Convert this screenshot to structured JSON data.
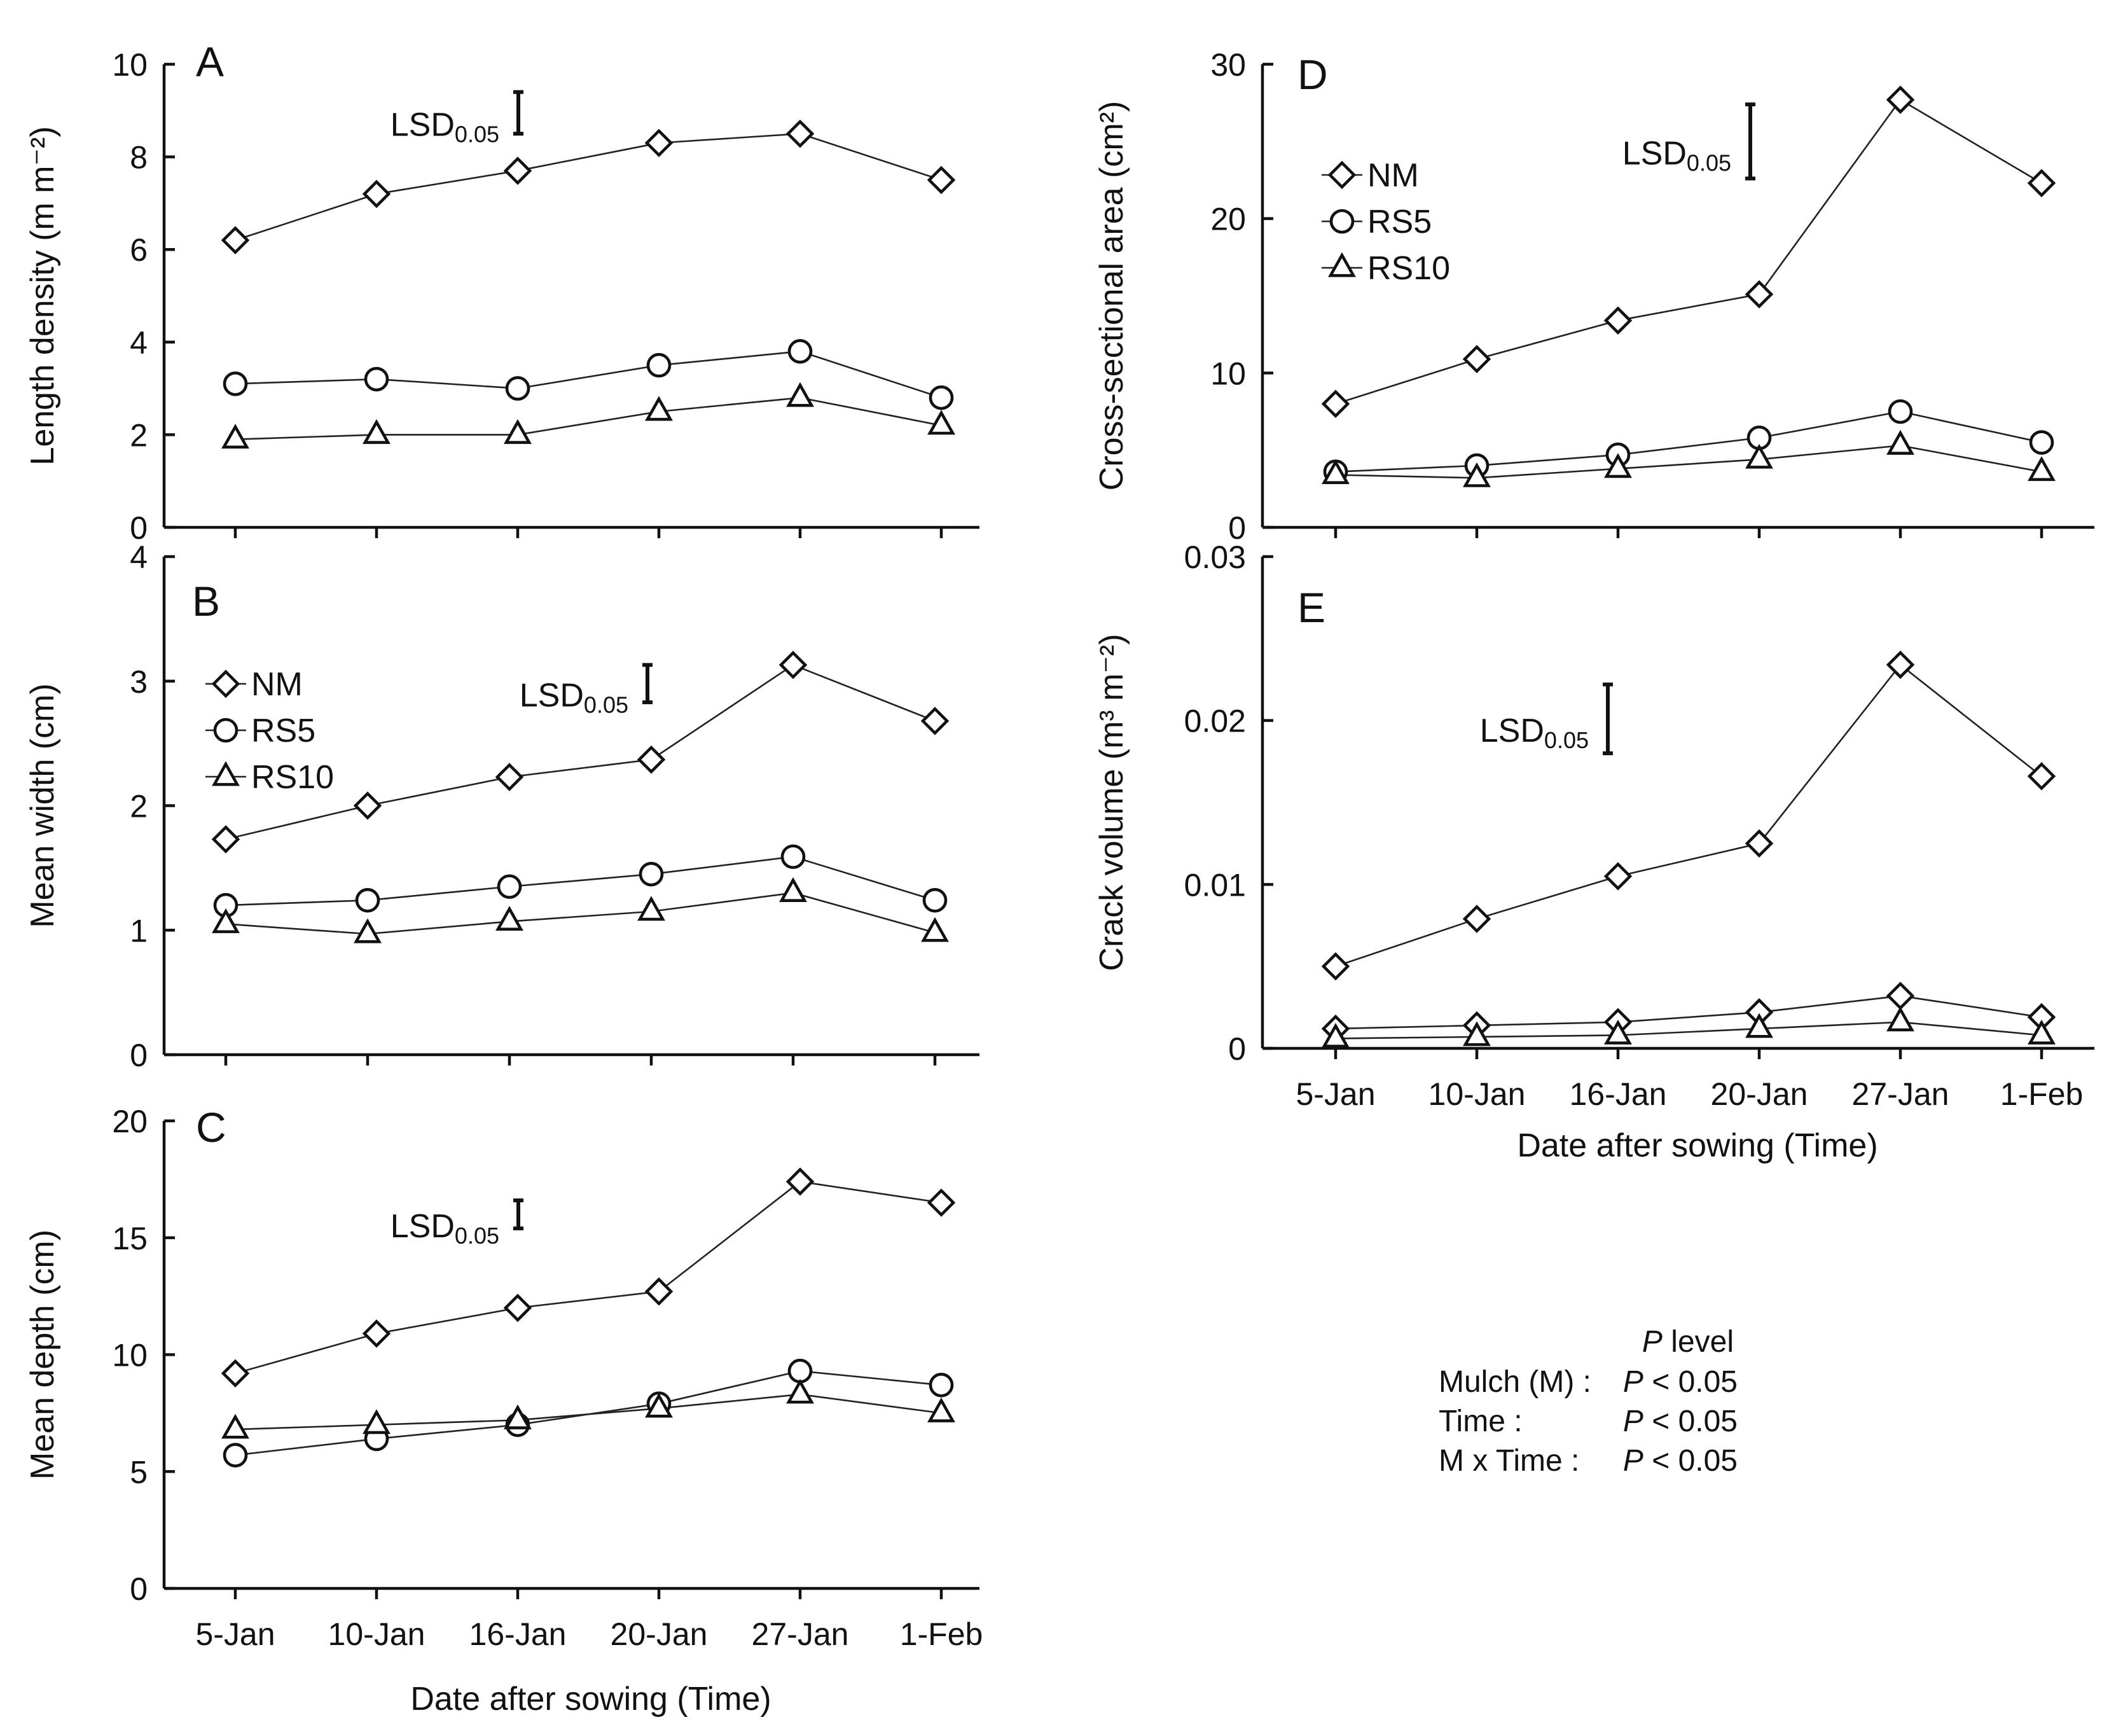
{
  "chart_data": [
    {
      "id": "A",
      "type": "line",
      "panel_label": "A",
      "ylabel": "Length density (m m⁻²)",
      "xlabel": "",
      "categories": [
        "5-Jan",
        "10-Jan",
        "16-Jan",
        "20-Jan",
        "27-Jan",
        "1-Feb"
      ],
      "ylim": [
        0,
        10
      ],
      "yticks": [
        0,
        2,
        4,
        6,
        8,
        10
      ],
      "ytick_labels": [
        "0",
        "2",
        "4",
        "6",
        "8",
        "10"
      ],
      "series": [
        {
          "name": "NM",
          "marker": "diamond",
          "values": [
            6.2,
            7.2,
            7.7,
            8.3,
            8.5,
            7.5
          ]
        },
        {
          "name": "RS5",
          "marker": "circle",
          "values": [
            3.1,
            3.2,
            3.0,
            3.5,
            3.8,
            2.8
          ]
        },
        {
          "name": "RS10",
          "marker": "triangle",
          "values": [
            1.9,
            2.0,
            2.0,
            2.5,
            2.8,
            2.2
          ]
        }
      ],
      "lsd": {
        "label": "LSD",
        "subscript": "0.05",
        "at_category": 2,
        "low": 8.5,
        "high": 9.4
      },
      "show_legend": false
    },
    {
      "id": "B",
      "type": "line",
      "panel_label": "B",
      "ylabel": "Mean width (cm)",
      "xlabel": "",
      "categories": [
        "5-Jan",
        "10-Jan",
        "16-Jan",
        "20-Jan",
        "27-Jan",
        "1-Feb"
      ],
      "ylim": [
        0,
        4
      ],
      "yticks": [
        0,
        1,
        2,
        3,
        4
      ],
      "ytick_labels": [
        "0",
        "1",
        "2",
        "3",
        "4"
      ],
      "series": [
        {
          "name": "NM",
          "marker": "diamond",
          "values": [
            1.73,
            2.0,
            2.23,
            2.37,
            3.13,
            2.68
          ]
        },
        {
          "name": "RS5",
          "marker": "circle",
          "values": [
            1.2,
            1.24,
            1.35,
            1.45,
            1.59,
            1.24
          ]
        },
        {
          "name": "RS10",
          "marker": "triangle",
          "values": [
            1.05,
            0.97,
            1.07,
            1.15,
            1.3,
            0.98
          ]
        }
      ],
      "lsd": {
        "label": "LSD",
        "subscript": "0.05",
        "at_category": 3,
        "low": 2.83,
        "high": 3.13
      },
      "show_legend": true,
      "legend_position": "upper-left"
    },
    {
      "id": "C",
      "type": "line",
      "panel_label": "C",
      "ylabel": "Mean depth (cm)",
      "xlabel": "Date after sowing (Time)",
      "categories": [
        "5-Jan",
        "10-Jan",
        "16-Jan",
        "20-Jan",
        "27-Jan",
        "1-Feb"
      ],
      "ylim": [
        0,
        20
      ],
      "yticks": [
        0,
        5,
        10,
        15,
        20
      ],
      "ytick_labels": [
        "0",
        "5",
        "10",
        "15",
        "20"
      ],
      "series": [
        {
          "name": "NM",
          "marker": "diamond",
          "values": [
            9.2,
            10.9,
            12.0,
            12.7,
            17.4,
            16.5
          ]
        },
        {
          "name": "RS5",
          "marker": "circle",
          "values": [
            5.7,
            6.4,
            7.0,
            7.9,
            9.3,
            8.7
          ]
        },
        {
          "name": "RS10",
          "marker": "triangle",
          "values": [
            6.8,
            7.0,
            7.2,
            7.7,
            8.3,
            7.5
          ]
        }
      ],
      "lsd": {
        "label": "LSD",
        "subscript": "0.05",
        "at_category": 2,
        "low": 15.4,
        "high": 16.6
      },
      "show_legend": false
    },
    {
      "id": "D",
      "type": "line",
      "panel_label": "D",
      "ylabel": "Cross-sectional area (cm²)",
      "xlabel": "",
      "categories": [
        "5-Jan",
        "10-Jan",
        "16-Jan",
        "20-Jan",
        "27-Jan",
        "1-Feb"
      ],
      "ylim": [
        0,
        30
      ],
      "yticks": [
        0,
        10,
        20,
        30
      ],
      "ytick_labels": [
        "0",
        "10",
        "20",
        "30"
      ],
      "series": [
        {
          "name": "NM",
          "marker": "diamond",
          "values": [
            8.0,
            10.9,
            13.4,
            15.1,
            27.7,
            22.3
          ]
        },
        {
          "name": "RS5",
          "marker": "circle",
          "values": [
            3.6,
            4.0,
            4.7,
            5.8,
            7.5,
            5.5
          ]
        },
        {
          "name": "RS10",
          "marker": "triangle",
          "values": [
            3.4,
            3.2,
            3.8,
            4.4,
            5.3,
            3.6
          ]
        }
      ],
      "lsd": {
        "label": "LSD",
        "subscript": "0.05",
        "at_category": 3,
        "low": 22.6,
        "high": 27.4
      },
      "show_legend": true,
      "legend_position": "upper-left"
    },
    {
      "id": "E",
      "type": "line",
      "panel_label": "E",
      "ylabel": "Crack volume (m³ m⁻²)",
      "xlabel": "Date after sowing (Time)",
      "categories": [
        "5-Jan",
        "10-Jan",
        "16-Jan",
        "20-Jan",
        "27-Jan",
        "1-Feb"
      ],
      "ylim": [
        0,
        0.03
      ],
      "yticks": [
        0,
        0.01,
        0.02,
        0.03
      ],
      "ytick_labels": [
        "0",
        "0.01",
        "0.02",
        "0.03"
      ],
      "series": [
        {
          "name": "NM",
          "marker": "diamond",
          "values": [
            0.005,
            0.0079,
            0.0105,
            0.0125,
            0.0234,
            0.0166
          ]
        },
        {
          "name": "RS5",
          "marker": "diamond",
          "values": [
            0.0012,
            0.0014,
            0.0016,
            0.0022,
            0.0032,
            0.0019
          ]
        },
        {
          "name": "RS10",
          "marker": "triangle",
          "values": [
            0.0006,
            0.0007,
            0.0008,
            0.0012,
            0.0016,
            0.0008
          ]
        }
      ],
      "lsd": {
        "label": "LSD",
        "subscript": "0.05",
        "at_category": 2,
        "low": 0.018,
        "high": 0.0222
      },
      "show_legend": false
    }
  ],
  "p_level": {
    "header_italic": "P",
    "header_rest": " level",
    "rows": [
      {
        "label": "Mulch (M) :",
        "p": "P",
        "value": " < 0.05"
      },
      {
        "label": "Time         :",
        "p": "P",
        "value": " < 0.05"
      },
      {
        "label": "M x Time  :",
        "p": "P",
        "value": " < 0.05"
      }
    ]
  }
}
